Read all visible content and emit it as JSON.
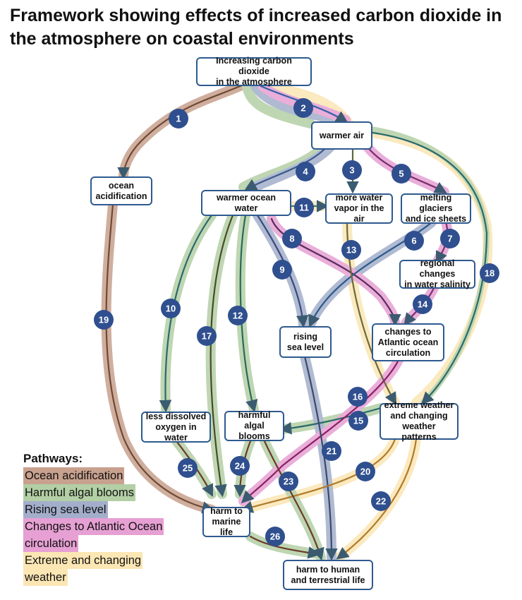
{
  "title": "Framework showing effects of increased carbon dioxide in the atmosphere on coastal environments",
  "nodes": {
    "co2": "Increasing carbon dioxide\nin the atmosphere",
    "warmer_air": "warmer air",
    "ocean_acidification": "ocean\nacidification",
    "warmer_ocean_water": "warmer ocean water",
    "water_vapor": "more water\nvapor in the air",
    "glaciers": "melting glaciers\nand ice sheets",
    "salinity": "regional changes\nin water salinity",
    "sea_level": "rising\nsea level",
    "atlantic": "changes to\nAtlantic ocean\ncirculation",
    "oxygen": "less dissolved\noxygen in water",
    "algal": "harmful\nalgal blooms",
    "weather": "extreme weather\nand changing\nweather patterns",
    "marine": "harm to\nmarine life",
    "human": "harm to human\nand terrestrial life"
  },
  "legend": {
    "title": "Pathways:",
    "items": [
      {
        "label": "Ocean acidification",
        "color": "#c8a18e"
      },
      {
        "label": "Harmful algal blooms",
        "color": "#b3cfa5"
      },
      {
        "label": "Rising sea level",
        "color": "#a3aecb"
      },
      {
        "label": "Changes to Atlantic Ocean",
        "color": "#e6a0d3"
      },
      {
        "label": "circulation",
        "color": "#e6a0d3"
      },
      {
        "label": "Extreme and changing",
        "color": "#fbe6b4"
      },
      {
        "label": "weather",
        "color": "#fbe6b4"
      }
    ]
  },
  "badges": [
    "1",
    "2",
    "3",
    "4",
    "5",
    "6",
    "7",
    "8",
    "9",
    "10",
    "11",
    "12",
    "13",
    "14",
    "15",
    "16",
    "17",
    "18",
    "19",
    "20",
    "21",
    "22",
    "23",
    "24",
    "25",
    "26"
  ],
  "colors": {
    "node_border": "#2e5a8f",
    "badge_fill": "#2f4f8f",
    "ocean_acidification": "#c8a18e",
    "algal_blooms": "#b3cfa5",
    "sea_level": "#a3aecb",
    "atlantic": "#e6a0d3",
    "weather": "#fbe6b4"
  }
}
